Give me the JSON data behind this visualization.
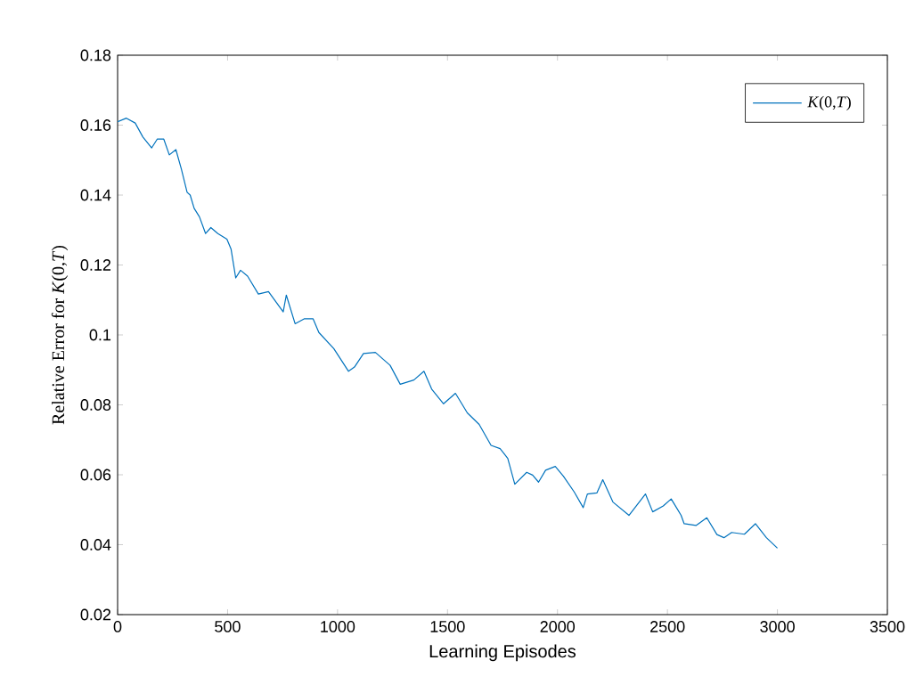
{
  "chart_data": {
    "type": "line",
    "xlabel": "Learning Episodes",
    "ylabel": "Relative Error for *K*(0,*T*)",
    "xlim": [
      0,
      3500
    ],
    "ylim": [
      0.02,
      0.18
    ],
    "xticks": [
      0,
      500,
      1000,
      1500,
      2000,
      2500,
      3000,
      3500
    ],
    "yticks": [
      0.02,
      0.04,
      0.06,
      0.08,
      0.1,
      0.12,
      0.14,
      0.16,
      0.18
    ],
    "legend": "top right",
    "grid": false,
    "marker": "none",
    "line_style": "solid",
    "x": [
      0,
      40,
      80,
      115,
      155,
      180,
      210,
      235,
      265,
      290,
      316,
      330,
      348,
      372,
      400,
      424,
      456,
      497,
      516,
      537,
      559,
      591,
      640,
      686,
      753,
      767,
      807,
      848,
      889,
      915,
      983,
      1050,
      1077,
      1118,
      1172,
      1239,
      1285,
      1347,
      1393,
      1428,
      1482,
      1536,
      1590,
      1644,
      1698,
      1739,
      1774,
      1806,
      1860,
      1887,
      1914,
      1946,
      1990,
      2027,
      2076,
      2117,
      2136,
      2179,
      2206,
      2252,
      2325,
      2400,
      2433,
      2481,
      2517,
      2562,
      2576,
      2630,
      2679,
      2725,
      2757,
      2792,
      2850,
      2900,
      2950,
      3000
    ],
    "series": [
      {
        "name": "*K*(0,*T*)",
        "color": "#0072bd",
        "values": [
          0.161,
          0.162,
          0.1606,
          0.1566,
          0.1535,
          0.156,
          0.156,
          0.1515,
          0.153,
          0.1474,
          0.1408,
          0.14,
          0.1362,
          0.1338,
          0.129,
          0.1307,
          0.129,
          0.1274,
          0.1245,
          0.1163,
          0.1185,
          0.1168,
          0.1117,
          0.1124,
          0.1066,
          0.1114,
          0.1032,
          0.1046,
          0.1046,
          0.1007,
          0.0961,
          0.0896,
          0.0908,
          0.0947,
          0.095,
          0.0913,
          0.0859,
          0.0871,
          0.0896,
          0.0845,
          0.0803,
          0.0833,
          0.0777,
          0.0744,
          0.0684,
          0.0675,
          0.0647,
          0.0573,
          0.0607,
          0.0599,
          0.0579,
          0.0613,
          0.0624,
          0.0596,
          0.0551,
          0.0506,
          0.0545,
          0.0548,
          0.0586,
          0.0522,
          0.0484,
          0.0545,
          0.0494,
          0.0511,
          0.0531,
          0.0484,
          0.046,
          0.0455,
          0.0477,
          0.0429,
          0.042,
          0.0435,
          0.043,
          0.046,
          0.042,
          0.039
        ]
      }
    ]
  }
}
